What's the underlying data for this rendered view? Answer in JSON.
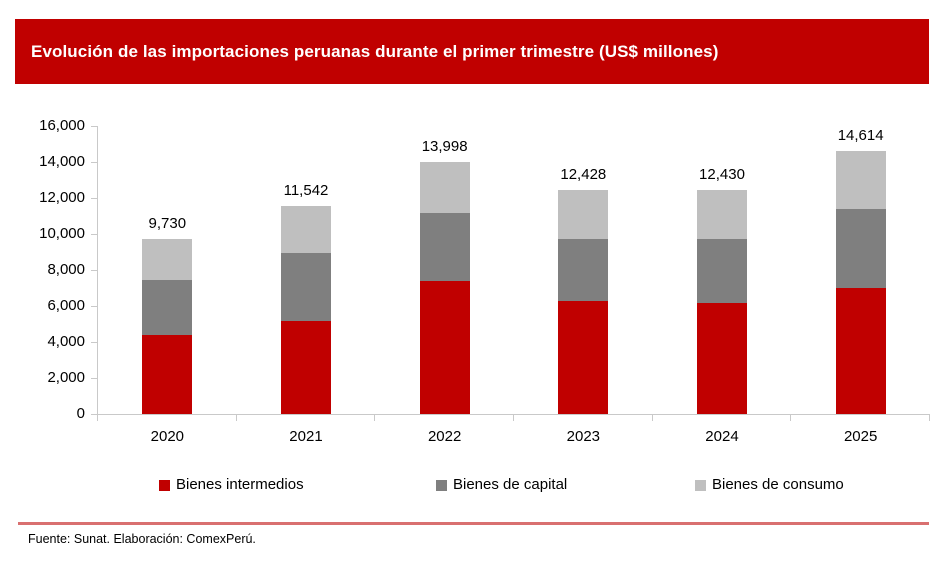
{
  "header": {
    "title": "Evolución de las importaciones peruanas durante el primer trimestre (US$ millones)",
    "background_color": "#C00000",
    "text_color": "#FFFFFF"
  },
  "chart_data": {
    "type": "bar",
    "stacked": true,
    "title": "Evolución de las importaciones peruanas durante el primer trimestre (US$ millones)",
    "categories": [
      "2020",
      "2021",
      "2022",
      "2023",
      "2024",
      "2025"
    ],
    "series": [
      {
        "name": "Bienes intermedios",
        "color": "#C00000",
        "values": [
          4400,
          5180,
          7400,
          6270,
          6160,
          7010
        ]
      },
      {
        "name": "Bienes de capital",
        "color": "#7F7F7F",
        "values": [
          3050,
          3770,
          3790,
          3430,
          3540,
          4370
        ]
      },
      {
        "name": "Bienes de consumo",
        "color": "#BFBFBF",
        "values": [
          2280,
          2592,
          2808,
          2728,
          2730,
          3234
        ]
      }
    ],
    "totals": [
      9730,
      11542,
      13998,
      12428,
      12430,
      14614
    ],
    "total_labels": [
      "9,730",
      "11,542",
      "13,998",
      "12,428",
      "12,430",
      "14,614"
    ],
    "y_ticks": [
      "0",
      "2,000",
      "4,000",
      "6,000",
      "8,000",
      "10,000",
      "12,000",
      "14,000",
      "16,000"
    ],
    "ylim": [
      0,
      16000
    ],
    "xlabel": "",
    "ylabel": "",
    "grid": false,
    "legend_position": "bottom",
    "axis_color": "#C9C9C9"
  },
  "footer": {
    "source_text": "Fuente: Sunat. Elaboración: ComexPerú.",
    "divider_color": "#D97070"
  }
}
